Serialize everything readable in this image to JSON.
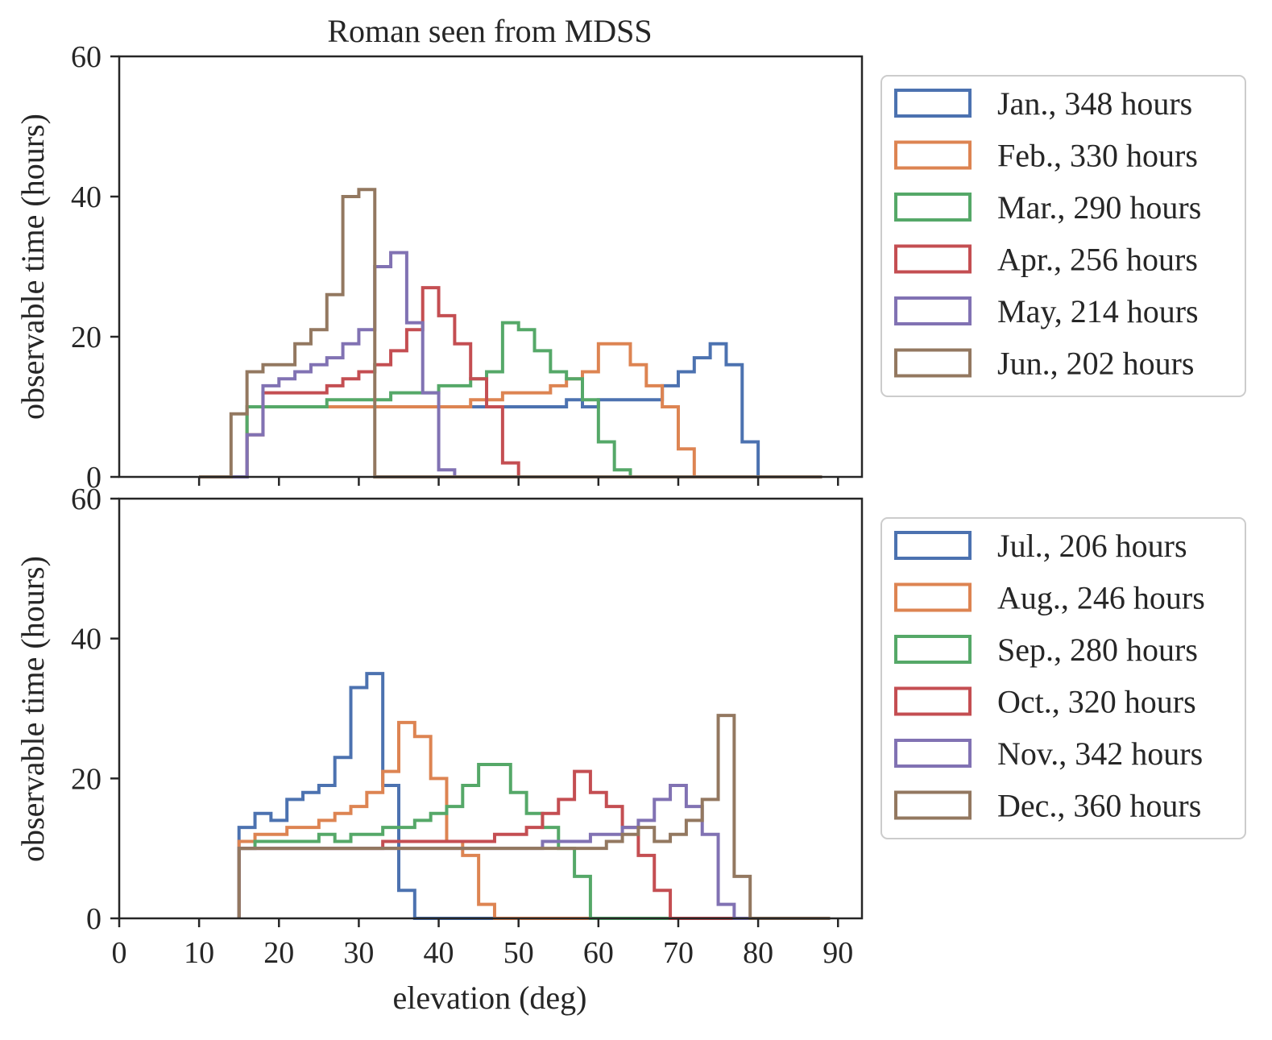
{
  "chart_data": [
    {
      "type": "histogram-step",
      "title": "Roman seen from MDSS",
      "xlabel": "",
      "ylabel": "observable time (hours)",
      "xlim": [
        0,
        93
      ],
      "ylim": [
        0,
        60
      ],
      "xticks": [
        10,
        20,
        30,
        40,
        50,
        60,
        70,
        80,
        90
      ],
      "xtick_labels_shown": false,
      "yticks": [
        0,
        20,
        40,
        60
      ],
      "legend_placement": "outside-right",
      "bin_edges": [
        10,
        12,
        14,
        16,
        18,
        20,
        22,
        24,
        26,
        28,
        30,
        32,
        34,
        36,
        38,
        40,
        42,
        44,
        46,
        48,
        50,
        52,
        54,
        56,
        58,
        60,
        62,
        64,
        66,
        68,
        70,
        72,
        74,
        76,
        78,
        80,
        82,
        84,
        86,
        88
      ],
      "series": [
        {
          "name": "Jan., 348 hours",
          "color": "#4c72b0",
          "values": [
            0,
            0,
            0,
            10,
            10,
            10,
            10,
            10,
            10,
            10,
            10,
            10,
            10,
            10,
            10,
            10,
            10,
            10,
            10,
            10,
            10,
            10,
            10,
            11,
            10,
            11,
            11,
            11,
            11,
            13,
            15,
            17,
            19,
            16,
            5,
            0,
            0,
            0,
            0
          ]
        },
        {
          "name": "Feb., 330 hours",
          "color": "#dd8452",
          "values": [
            0,
            0,
            0,
            10,
            10,
            10,
            10,
            10,
            10,
            10,
            10,
            10,
            10,
            10,
            10,
            10,
            10,
            11,
            11,
            12,
            12,
            12,
            13,
            14,
            15,
            19,
            19,
            16,
            13,
            10,
            4,
            0,
            0,
            0,
            0,
            0,
            0,
            0,
            0
          ]
        },
        {
          "name": "Mar., 290 hours",
          "color": "#55a868",
          "values": [
            0,
            0,
            0,
            10,
            10,
            10,
            10,
            10,
            11,
            11,
            11,
            11,
            12,
            12,
            12,
            13,
            13,
            14,
            15,
            22,
            21,
            18,
            15,
            14,
            11,
            5,
            1,
            0,
            0,
            0,
            0,
            0,
            0,
            0,
            0,
            0,
            0,
            0,
            0
          ]
        },
        {
          "name": "Apr., 256 hours",
          "color": "#c44e52",
          "values": [
            0,
            0,
            0,
            6,
            12,
            12,
            12,
            12,
            13,
            14,
            15,
            16,
            18,
            21,
            27,
            23,
            19,
            14,
            10,
            2,
            0,
            0,
            0,
            0,
            0,
            0,
            0,
            0,
            0,
            0,
            0,
            0,
            0,
            0,
            0,
            0,
            0,
            0,
            0
          ]
        },
        {
          "name": "May, 214 hours",
          "color": "#8172b3",
          "values": [
            0,
            0,
            0,
            6,
            13,
            14,
            15,
            16,
            17,
            19,
            21,
            30,
            32,
            22,
            12,
            1,
            0,
            0,
            0,
            0,
            0,
            0,
            0,
            0,
            0,
            0,
            0,
            0,
            0,
            0,
            0,
            0,
            0,
            0,
            0,
            0,
            0,
            0,
            0
          ]
        },
        {
          "name": "Jun., 202 hours",
          "color": "#937860",
          "values": [
            0,
            0,
            9,
            15,
            16,
            16,
            19,
            21,
            26,
            40,
            41,
            0,
            0,
            0,
            0,
            0,
            0,
            0,
            0,
            0,
            0,
            0,
            0,
            0,
            0,
            0,
            0,
            0,
            0,
            0,
            0,
            0,
            0,
            0,
            0,
            0,
            0,
            0,
            0
          ]
        }
      ]
    },
    {
      "type": "histogram-step",
      "title": "",
      "xlabel": "elevation (deg)",
      "ylabel": "observable time (hours)",
      "xlim": [
        0,
        93
      ],
      "ylim": [
        0,
        60
      ],
      "xticks": [
        0,
        10,
        20,
        30,
        40,
        50,
        60,
        70,
        80,
        90
      ],
      "yticks": [
        0,
        20,
        40,
        60
      ],
      "legend_placement": "outside-right",
      "bin_edges": [
        15,
        17,
        19,
        21,
        23,
        25,
        27,
        29,
        31,
        33,
        35,
        37,
        39,
        41,
        43,
        45,
        47,
        49,
        51,
        53,
        55,
        57,
        59,
        61,
        63,
        65,
        67,
        69,
        71,
        73,
        75,
        77,
        79,
        81,
        83,
        85,
        87,
        89
      ],
      "series": [
        {
          "name": "Jul., 206 hours",
          "color": "#4c72b0",
          "values": [
            13,
            15,
            14,
            17,
            18,
            19,
            23,
            33,
            35,
            19,
            4,
            0,
            0,
            0,
            0,
            0,
            0,
            0,
            0,
            0,
            0,
            0,
            0,
            0,
            0,
            0,
            0,
            0,
            0,
            0,
            0,
            0,
            0,
            0,
            0,
            0,
            0
          ]
        },
        {
          "name": "Aug., 246 hours",
          "color": "#dd8452",
          "values": [
            11,
            12,
            12,
            13,
            13,
            14,
            15,
            16,
            18,
            21,
            28,
            26,
            20,
            11,
            9,
            2,
            0,
            0,
            0,
            0,
            0,
            0,
            0,
            0,
            0,
            0,
            0,
            0,
            0,
            0,
            0,
            0,
            0,
            0,
            0,
            0,
            0
          ]
        },
        {
          "name": "Sep., 280 hours",
          "color": "#55a868",
          "values": [
            10,
            11,
            11,
            11,
            11,
            12,
            11,
            12,
            12,
            13,
            13,
            14,
            15,
            16,
            19,
            22,
            22,
            18,
            15,
            13,
            10,
            6,
            0,
            0,
            0,
            0,
            0,
            0,
            0,
            0,
            0,
            0,
            0,
            0,
            0,
            0,
            0
          ]
        },
        {
          "name": "Oct., 320 hours",
          "color": "#c44e52",
          "values": [
            10,
            10,
            10,
            10,
            10,
            10,
            10,
            10,
            10,
            11,
            11,
            11,
            11,
            11,
            11,
            11,
            12,
            12,
            13,
            15,
            17,
            21,
            18,
            16,
            13,
            9,
            4,
            0,
            0,
            0,
            0,
            0,
            0,
            0,
            0,
            0,
            0
          ]
        },
        {
          "name": "Nov., 342 hours",
          "color": "#8172b3",
          "values": [
            10,
            10,
            10,
            10,
            10,
            10,
            10,
            10,
            10,
            10,
            10,
            10,
            10,
            10,
            10,
            10,
            10,
            10,
            10,
            11,
            11,
            11,
            12,
            12,
            13,
            14,
            17,
            19,
            16,
            12,
            2,
            0,
            0,
            0,
            0,
            0,
            0
          ]
        },
        {
          "name": "Dec., 360 hours",
          "color": "#937860",
          "values": [
            10,
            10,
            10,
            10,
            10,
            10,
            10,
            10,
            10,
            10,
            10,
            10,
            10,
            10,
            10,
            10,
            10,
            10,
            10,
            10,
            10,
            10,
            10,
            11,
            12,
            13,
            11,
            12,
            14,
            17,
            29,
            6,
            0,
            0,
            0,
            0,
            0
          ]
        }
      ]
    }
  ]
}
